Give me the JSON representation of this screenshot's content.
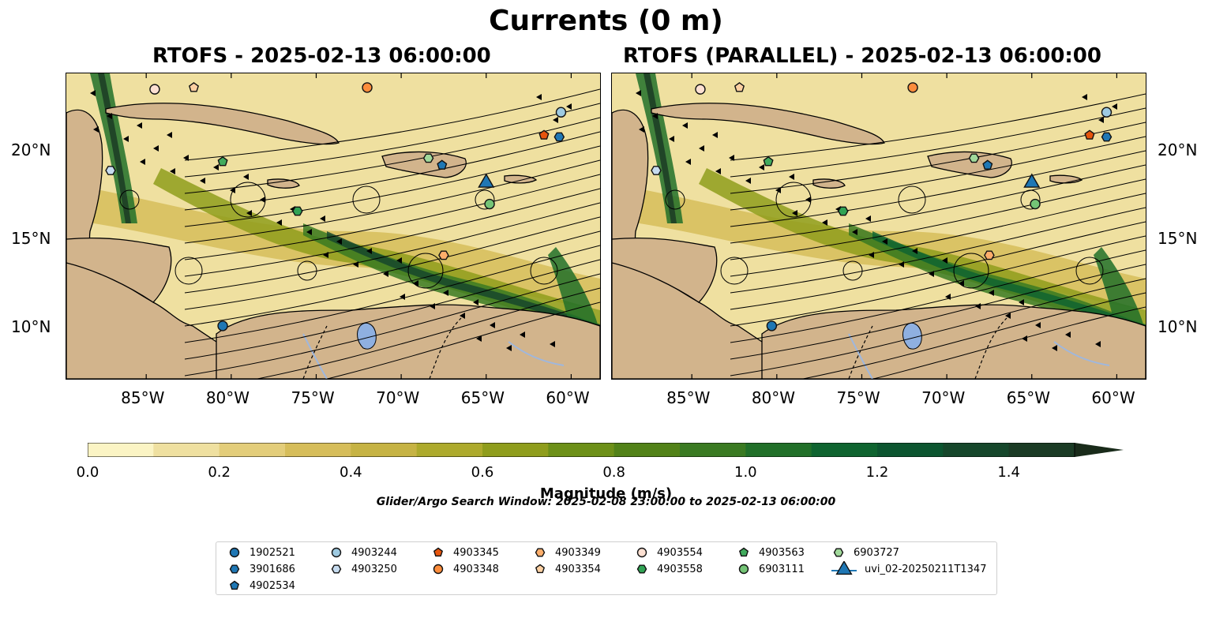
{
  "figure": {
    "title": "Currents (0 m)",
    "search_window": "Glider/Argo Search Window: 2025-02-08 23:00:00 to 2025-02-13 06:00:00"
  },
  "panels": [
    {
      "title": "RTOFS - 2025-02-13 06:00:00"
    },
    {
      "title": "RTOFS (PARALLEL) - 2025-02-13 06:00:00"
    }
  ],
  "axes": {
    "lon_ticks": [
      "85°W",
      "80°W",
      "75°W",
      "70°W",
      "65°W",
      "60°W"
    ],
    "lon_values": [
      -85,
      -80,
      -75,
      -70,
      -65,
      -60
    ],
    "lat_ticks": [
      "20°N",
      "15°N",
      "10°N"
    ],
    "lat_values": [
      20,
      15,
      10
    ],
    "extent": {
      "lon_min": -89.7,
      "lon_max": -58.3,
      "lat_min": 7.1,
      "lat_max": 24.4
    }
  },
  "colorbar": {
    "label": "Magnitude (m/s)",
    "tick_labels": [
      "0.0",
      "0.2",
      "0.4",
      "0.6",
      "0.8",
      "1.0",
      "1.2",
      "1.4"
    ],
    "tick_values": [
      0.0,
      0.2,
      0.4,
      0.6,
      0.8,
      1.0,
      1.2,
      1.4
    ],
    "max": 1.5,
    "extend": "max",
    "colors": [
      "#fbf4c4",
      "#efe0a0",
      "#e3cd7a",
      "#d6bd5a",
      "#c6b344",
      "#adaa2c",
      "#8f9d1c",
      "#6d9018",
      "#528218",
      "#3a7a22",
      "#217029",
      "#0f6430",
      "#0c5530",
      "#16472b",
      "#1b3b25",
      "#192b1a"
    ],
    "land_color": "#d2b48c",
    "water_color": "#9fb7dd"
  },
  "platforms": [
    {
      "id": "1902521",
      "marker": "circle",
      "color": "#1f77b4",
      "lon": -80.5,
      "lat": 10.1,
      "lon_par": -80.3,
      "lat_par": 10.1
    },
    {
      "id": "3901686",
      "marker": "hexagon",
      "color": "#1f77b4",
      "lon": -60.7,
      "lat": 20.8,
      "lon_par": -60.6,
      "lat_par": 20.8
    },
    {
      "id": "4902534",
      "marker": "pentagon",
      "color": "#1f77b4",
      "lon": -67.6,
      "lat": 19.2,
      "lon_par": -67.6,
      "lat_par": 19.2
    },
    {
      "id": "4903244",
      "marker": "circle",
      "color": "#9ecae1",
      "lon": -60.6,
      "lat": 22.2,
      "lon_par": -60.6,
      "lat_par": 22.2
    },
    {
      "id": "4903250",
      "marker": "hexagon",
      "color": "#c6dbef",
      "lon": -87.1,
      "lat": 18.9,
      "lon_par": -87.1,
      "lat_par": 18.9
    },
    {
      "id": "4903345",
      "marker": "pentagon",
      "color": "#e6550d",
      "lon": -61.6,
      "lat": 20.9,
      "lon_par": -61.6,
      "lat_par": 20.9
    },
    {
      "id": "4903348",
      "marker": "circle",
      "color": "#fd8d3c",
      "lon": -72.0,
      "lat": 23.6,
      "lon_par": -72.0,
      "lat_par": 23.6
    },
    {
      "id": "4903349",
      "marker": "hexagon",
      "color": "#fdae6b",
      "lon": -67.5,
      "lat": 14.1,
      "lon_par": -67.5,
      "lat_par": 14.1
    },
    {
      "id": "4903354",
      "marker": "pentagon",
      "color": "#fdd0a2",
      "lon": -82.2,
      "lat": 23.6,
      "lon_par": -82.2,
      "lat_par": 23.6
    },
    {
      "id": "4903554",
      "marker": "circle",
      "color": "#fde0d2",
      "lon": -84.5,
      "lat": 23.5,
      "lon_par": -84.5,
      "lat_par": 23.5
    },
    {
      "id": "4903558",
      "marker": "hexagon",
      "color": "#31a354",
      "lon": -76.1,
      "lat": 16.6,
      "lon_par": -76.1,
      "lat_par": 16.6
    },
    {
      "id": "4903563",
      "marker": "pentagon",
      "color": "#41ab5d",
      "lon": -80.5,
      "lat": 19.4,
      "lon_par": -80.5,
      "lat_par": 19.4
    },
    {
      "id": "6903111",
      "marker": "circle",
      "color": "#74c476",
      "lon": -64.8,
      "lat": 17.0,
      "lon_par": -64.8,
      "lat_par": 17.0
    },
    {
      "id": "6903727",
      "marker": "hexagon",
      "color": "#a1d99b",
      "lon": -68.4,
      "lat": 19.6,
      "lon_par": -68.4,
      "lat_par": 19.6
    },
    {
      "id": "uvi_02-20250211T1347",
      "marker": "triangle",
      "color": "#1f77b4",
      "lon": -65.0,
      "lat": 18.2,
      "lon_par": -65.0,
      "lat_par": 18.2
    }
  ]
}
